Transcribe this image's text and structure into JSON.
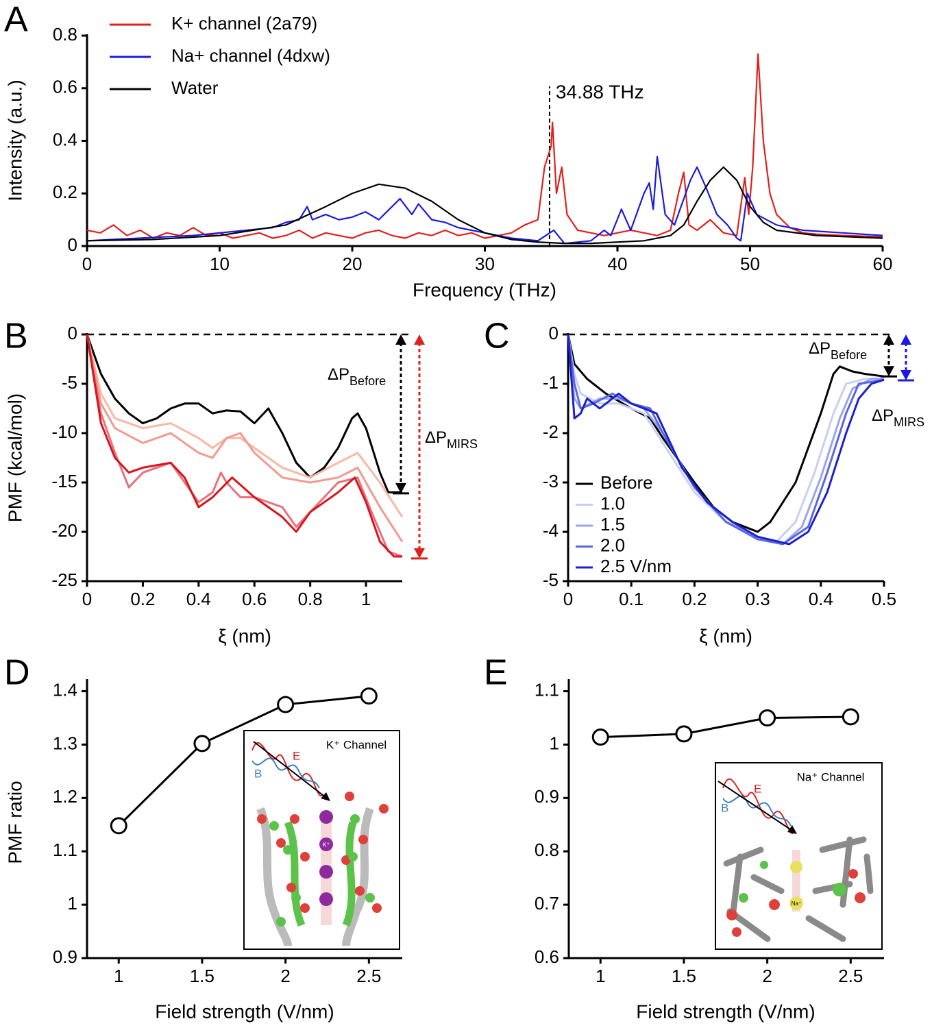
{
  "chart_data": [
    {
      "type": "line",
      "panel_label": "A",
      "xlabel": "Frequency (THz)",
      "ylabel": "Intensity (a.u.)",
      "xlim": [
        0,
        60
      ],
      "ylim": [
        0,
        0.8
      ],
      "xticks": [
        0,
        10,
        20,
        30,
        40,
        50,
        60
      ],
      "yticks": [
        0,
        0.2,
        0.4,
        0.6,
        0.8
      ],
      "legend": "upper left",
      "vline": {
        "x": 34.88,
        "label": "34.88 THz"
      },
      "series": [
        {
          "name": "K+ channel (2a79)",
          "color": "#e0201b",
          "x": [
            0,
            1,
            2,
            3,
            4,
            5,
            6,
            7,
            8,
            9,
            10,
            11,
            12,
            13,
            14,
            15,
            16,
            17,
            18,
            19,
            20,
            21,
            22,
            23,
            24,
            25,
            26,
            27,
            28,
            29,
            30,
            31,
            32,
            33,
            34,
            34.5,
            35,
            35.1,
            35.4,
            35.8,
            36.2,
            37,
            38,
            39,
            40,
            41,
            42,
            43,
            44,
            44.6,
            45,
            45.4,
            46,
            47,
            48,
            49,
            49.6,
            49.9,
            50.2,
            50.6,
            51,
            51.5,
            52,
            53,
            54,
            55,
            57,
            60
          ],
          "values": [
            0.06,
            0.05,
            0.08,
            0.04,
            0.06,
            0.03,
            0.05,
            0.04,
            0.07,
            0.04,
            0.05,
            0.03,
            0.04,
            0.05,
            0.03,
            0.04,
            0.06,
            0.03,
            0.05,
            0.04,
            0.03,
            0.05,
            0.06,
            0.04,
            0.03,
            0.05,
            0.04,
            0.06,
            0.04,
            0.05,
            0.03,
            0.04,
            0.05,
            0.08,
            0.1,
            0.3,
            0.38,
            0.47,
            0.2,
            0.3,
            0.12,
            0.06,
            0.05,
            0.04,
            0.05,
            0.06,
            0.05,
            0.04,
            0.06,
            0.2,
            0.28,
            0.08,
            0.06,
            0.1,
            0.05,
            0.04,
            0.26,
            0.12,
            0.3,
            0.73,
            0.4,
            0.2,
            0.12,
            0.07,
            0.05,
            0.045,
            0.04,
            0.035
          ]
        },
        {
          "name": "Na+ channel (4dxw)",
          "color": "#1a1ae0",
          "x": [
            0,
            2,
            4,
            6,
            8,
            10,
            12,
            14,
            15,
            16,
            16.6,
            17,
            18,
            19,
            20,
            21,
            22,
            23,
            23.6,
            24.5,
            25,
            26,
            27,
            28,
            30,
            32,
            34,
            35.2,
            36,
            38,
            39,
            39.5,
            40.3,
            41,
            42,
            42.4,
            42.7,
            43,
            43.6,
            44.3,
            45.5,
            46,
            46.7,
            47.5,
            48.3,
            49,
            49.3,
            49.8,
            50.5,
            52,
            54,
            57,
            60
          ],
          "values": [
            0.02,
            0.025,
            0.03,
            0.035,
            0.04,
            0.05,
            0.06,
            0.07,
            0.09,
            0.1,
            0.15,
            0.1,
            0.12,
            0.1,
            0.11,
            0.13,
            0.1,
            0.15,
            0.18,
            0.12,
            0.16,
            0.1,
            0.09,
            0.07,
            0.05,
            0.03,
            0.02,
            0.06,
            0.01,
            0.02,
            0.06,
            0.04,
            0.14,
            0.06,
            0.2,
            0.24,
            0.14,
            0.34,
            0.12,
            0.08,
            0.25,
            0.3,
            0.22,
            0.12,
            0.08,
            0.03,
            0.02,
            0.2,
            0.12,
            0.08,
            0.06,
            0.05,
            0.04
          ]
        },
        {
          "name": "Water",
          "color": "#000000",
          "x": [
            0,
            5,
            10,
            15,
            18,
            20,
            22,
            24,
            26,
            28,
            30,
            32,
            34,
            36,
            38,
            40,
            42,
            44,
            45,
            46,
            47,
            48,
            49,
            50,
            51,
            52,
            55,
            60
          ],
          "values": [
            0.02,
            0.025,
            0.04,
            0.08,
            0.15,
            0.2,
            0.235,
            0.22,
            0.17,
            0.1,
            0.05,
            0.025,
            0.015,
            0.01,
            0.01,
            0.015,
            0.02,
            0.04,
            0.08,
            0.17,
            0.25,
            0.3,
            0.25,
            0.15,
            0.09,
            0.06,
            0.04,
            0.03
          ]
        }
      ]
    },
    {
      "type": "line",
      "panel_label": "B",
      "xlabel": "ξ (nm)",
      "ylabel": "PMF (kcal/mol)",
      "xlim": [
        0,
        1.13
      ],
      "ylim": [
        -25,
        0
      ],
      "xticks": [
        0,
        0.2,
        0.4,
        0.6,
        0.8,
        1
      ],
      "yticks": [
        0,
        -5,
        -10,
        -15,
        -20,
        -25
      ],
      "hline": 0,
      "arrows": [
        {
          "to": -16.1,
          "color": "#000000",
          "label": {
            "text": "ΔP",
            "sub": "Before"
          }
        },
        {
          "to": -22.7,
          "color": "#e0201b",
          "label": {
            "text": "ΔP",
            "sub": "MIRS"
          }
        }
      ],
      "series": [
        {
          "color": "#000000",
          "x": [
            0,
            0.05,
            0.1,
            0.15,
            0.2,
            0.25,
            0.3,
            0.35,
            0.4,
            0.45,
            0.5,
            0.55,
            0.6,
            0.65,
            0.7,
            0.75,
            0.8,
            0.85,
            0.9,
            0.95,
            0.97,
            1.0,
            1.05,
            1.08,
            1.13
          ],
          "values": [
            0,
            -4,
            -6.5,
            -8,
            -9,
            -8.5,
            -7.5,
            -7,
            -7,
            -8,
            -7.7,
            -7.8,
            -9,
            -7.5,
            -10,
            -13,
            -14.5,
            -13.5,
            -11.5,
            -8.5,
            -8,
            -9.5,
            -14,
            -16,
            -16
          ]
        },
        {
          "color": "#f7b9a4",
          "x": [
            0,
            0.05,
            0.1,
            0.2,
            0.3,
            0.4,
            0.45,
            0.5,
            0.55,
            0.6,
            0.7,
            0.8,
            0.9,
            0.97,
            1.05,
            1.13
          ],
          "values": [
            0,
            -6,
            -8.5,
            -9.5,
            -9,
            -10.5,
            -11.5,
            -10.5,
            -10.5,
            -11.5,
            -13.5,
            -14.5,
            -13,
            -12,
            -15,
            -18.5
          ]
        },
        {
          "color": "#f19a8e",
          "x": [
            0,
            0.05,
            0.1,
            0.2,
            0.3,
            0.4,
            0.45,
            0.5,
            0.55,
            0.6,
            0.7,
            0.8,
            0.9,
            0.97,
            1.05,
            1.13
          ],
          "values": [
            0,
            -7,
            -9.5,
            -11,
            -10,
            -12,
            -12.5,
            -10.5,
            -10,
            -12,
            -14.5,
            -15,
            -14.5,
            -13.5,
            -17.5,
            -21
          ]
        },
        {
          "color": "#e8707e",
          "x": [
            0,
            0.05,
            0.1,
            0.15,
            0.2,
            0.3,
            0.4,
            0.45,
            0.48,
            0.5,
            0.55,
            0.6,
            0.7,
            0.75,
            0.8,
            0.9,
            0.97,
            1.02,
            1.08,
            1.13
          ],
          "values": [
            0,
            -8,
            -12,
            -15.5,
            -14,
            -13,
            -17,
            -16,
            -14,
            -15,
            -16.5,
            -16.5,
            -17.5,
            -19.5,
            -18,
            -15,
            -14.5,
            -18,
            -22,
            -22.5
          ]
        },
        {
          "color": "#d8141c",
          "x": [
            0,
            0.05,
            0.1,
            0.15,
            0.2,
            0.3,
            0.35,
            0.4,
            0.45,
            0.52,
            0.6,
            0.7,
            0.75,
            0.8,
            0.9,
            0.96,
            1.0,
            1.05,
            1.1,
            1.13
          ],
          "values": [
            0,
            -9,
            -12.5,
            -14,
            -13.5,
            -13,
            -14.5,
            -17.5,
            -16.5,
            -14.5,
            -16.5,
            -18.5,
            -20,
            -18,
            -16,
            -14.5,
            -17,
            -21,
            -22.5,
            -22.5
          ]
        }
      ]
    },
    {
      "type": "line",
      "panel_label": "C",
      "xlabel": "ξ (nm)",
      "xlim": [
        0,
        0.5
      ],
      "ylim": [
        -5,
        0
      ],
      "xticks": [
        0,
        0.1,
        0.2,
        0.3,
        0.4,
        0.5
      ],
      "yticks": [
        0,
        -1,
        -2,
        -3,
        -4,
        -5
      ],
      "hline": 0,
      "legend": "lower left",
      "arrows": [
        {
          "to": -0.85,
          "color": "#000000",
          "label": {
            "text": "ΔP",
            "sub": "Before"
          }
        },
        {
          "to": -0.93,
          "color": "#1a1ae0",
          "label": {
            "text": "ΔP",
            "sub": "MIRS"
          }
        }
      ],
      "series": [
        {
          "name": "Before",
          "color": "#000000",
          "x": [
            0,
            0.01,
            0.03,
            0.06,
            0.1,
            0.13,
            0.15,
            0.2,
            0.23,
            0.26,
            0.3,
            0.32,
            0.36,
            0.4,
            0.42,
            0.43,
            0.45,
            0.47,
            0.5
          ],
          "values": [
            0,
            -0.6,
            -0.9,
            -1.2,
            -1.5,
            -1.7,
            -2.1,
            -3.0,
            -3.5,
            -3.8,
            -4.0,
            -3.8,
            -3.0,
            -1.6,
            -0.8,
            -0.65,
            -0.75,
            -0.8,
            -0.85
          ]
        },
        {
          "name": "1.0",
          "color": "#c9cff2",
          "x": [
            0,
            0.01,
            0.02,
            0.05,
            0.08,
            0.12,
            0.15,
            0.2,
            0.25,
            0.3,
            0.33,
            0.36,
            0.39,
            0.42,
            0.44,
            0.47,
            0.5
          ],
          "values": [
            0,
            -0.8,
            -1.2,
            -1.4,
            -1.4,
            -1.6,
            -2.2,
            -3.2,
            -3.8,
            -4.1,
            -4.2,
            -3.8,
            -2.8,
            -1.6,
            -1.0,
            -0.9,
            -0.9
          ]
        },
        {
          "name": "1.5",
          "color": "#9aa4ec",
          "x": [
            0,
            0.01,
            0.02,
            0.05,
            0.08,
            0.12,
            0.15,
            0.2,
            0.25,
            0.3,
            0.34,
            0.37,
            0.4,
            0.43,
            0.45,
            0.48,
            0.5
          ],
          "values": [
            0,
            -1.3,
            -1.5,
            -1.3,
            -1.3,
            -1.5,
            -2.0,
            -3.1,
            -3.8,
            -4.1,
            -4.25,
            -3.9,
            -2.9,
            -1.7,
            -1.1,
            -0.9,
            -0.9
          ]
        },
        {
          "name": "2.0",
          "color": "#5a66e0",
          "x": [
            0,
            0.01,
            0.02,
            0.04,
            0.07,
            0.1,
            0.13,
            0.15,
            0.2,
            0.25,
            0.3,
            0.34,
            0.38,
            0.41,
            0.44,
            0.46,
            0.5
          ],
          "values": [
            0,
            -1.0,
            -1.5,
            -1.4,
            -1.2,
            -1.4,
            -1.5,
            -2.0,
            -3.1,
            -3.8,
            -4.15,
            -4.25,
            -3.9,
            -2.8,
            -1.6,
            -1.0,
            -0.92
          ]
        },
        {
          "name": "2.5 V/nm",
          "color": "#1a20d0",
          "x": [
            0,
            0.01,
            0.02,
            0.03,
            0.05,
            0.08,
            0.1,
            0.14,
            0.18,
            0.22,
            0.26,
            0.3,
            0.35,
            0.38,
            0.41,
            0.44,
            0.46,
            0.48,
            0.5
          ],
          "values": [
            0,
            -1.7,
            -1.6,
            -1.3,
            -1.5,
            -1.2,
            -1.4,
            -1.6,
            -2.7,
            -3.4,
            -3.8,
            -4.1,
            -4.25,
            -4.0,
            -3.2,
            -2.0,
            -1.3,
            -1.0,
            -0.92
          ]
        }
      ]
    },
    {
      "type": "line",
      "panel_label": "D",
      "xlabel": "Field strength (V/nm)",
      "ylabel": "PMF ratio",
      "xlim": [
        0.81,
        2.7
      ],
      "ylim": [
        0.9,
        1.42
      ],
      "xticks": [
        1,
        1.5,
        2,
        2.5
      ],
      "yticks": [
        0.9,
        1,
        1.1,
        1.2,
        1.3,
        1.4
      ],
      "marker": "circle",
      "color": "#000000",
      "x": [
        1,
        1.5,
        2,
        2.5
      ],
      "values": [
        1.148,
        1.302,
        1.375,
        1.391
      ],
      "inset": {
        "title": "K⁺ Channel",
        "e": "E",
        "b": "B",
        "ion": "K⁺"
      }
    },
    {
      "type": "line",
      "panel_label": "E",
      "xlabel": "Field strength (V/nm)",
      "xlim": [
        0.81,
        2.7
      ],
      "ylim": [
        0.6,
        1.12
      ],
      "xticks": [
        1,
        1.5,
        2,
        2.5
      ],
      "yticks": [
        0.6,
        0.7,
        0.8,
        0.9,
        1,
        1.1
      ],
      "marker": "circle",
      "color": "#000000",
      "x": [
        1,
        1.5,
        2,
        2.5
      ],
      "values": [
        1.014,
        1.02,
        1.05,
        1.052
      ],
      "inset": {
        "title": "Na⁺ Channel",
        "e": "E",
        "b": "B",
        "ion": "Na⁺"
      }
    }
  ]
}
